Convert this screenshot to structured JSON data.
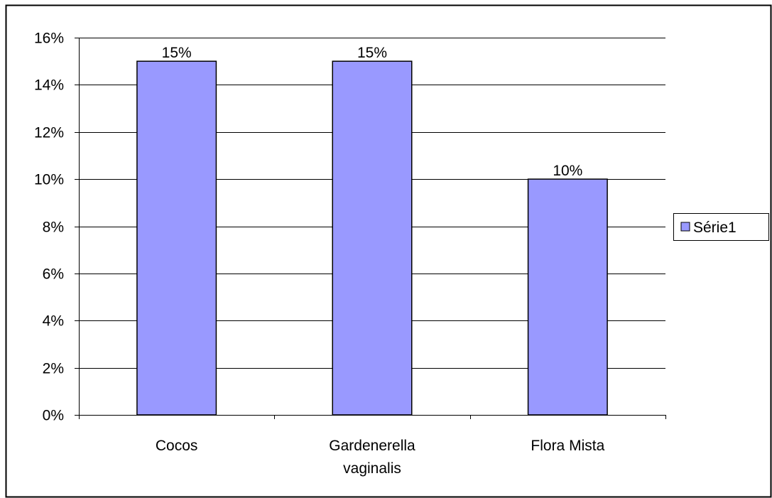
{
  "chart_data": {
    "type": "bar",
    "categories": [
      "Cocos",
      "Gardenerella vaginalis",
      "Flora Mista"
    ],
    "category_lines": [
      [
        "Cocos"
      ],
      [
        "Gardenerella",
        "vaginalis"
      ],
      [
        "Flora Mista"
      ]
    ],
    "series": [
      {
        "name": "Série1",
        "values": [
          15,
          15,
          10
        ],
        "color": "#9999ff"
      }
    ],
    "data_labels": [
      "15%",
      "15%",
      "10%"
    ],
    "y_ticks": [
      0,
      2,
      4,
      6,
      8,
      10,
      12,
      14,
      16
    ],
    "y_tick_labels": [
      "0%",
      "2%",
      "4%",
      "6%",
      "8%",
      "10%",
      "12%",
      "14%",
      "16%"
    ],
    "ylim": [
      0,
      16
    ],
    "title": "",
    "xlabel": "",
    "ylabel": "",
    "grid": true,
    "legend_position": "right",
    "colors": {
      "bar_fill": "#9999ff",
      "bar_stroke": "#000000",
      "grid": "#000000",
      "background": "#ffffff"
    }
  }
}
